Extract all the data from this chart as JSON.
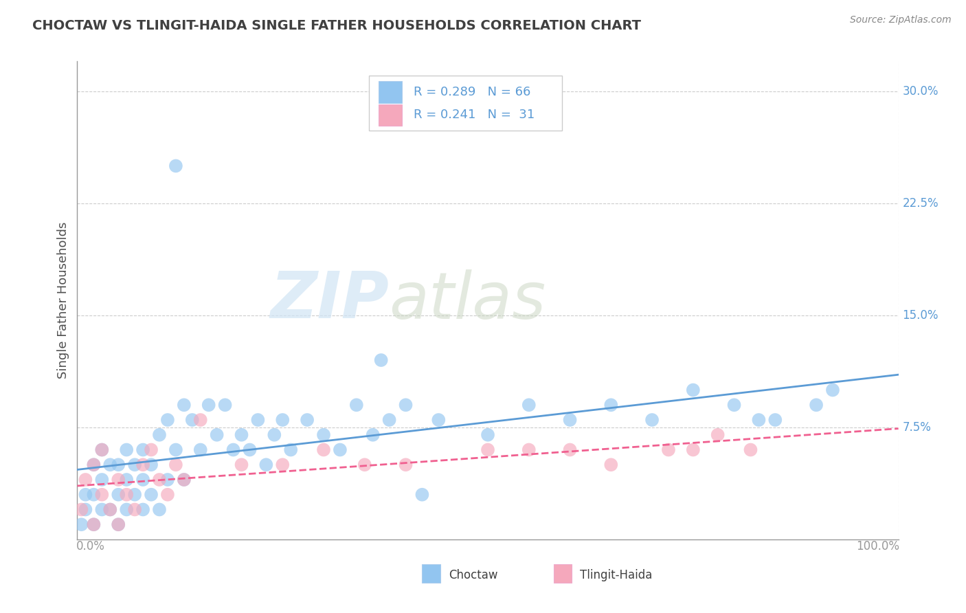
{
  "title": "CHOCTAW VS TLINGIT-HAIDA SINGLE FATHER HOUSEHOLDS CORRELATION CHART",
  "source": "Source: ZipAtlas.com",
  "ylabel": "Single Father Households",
  "choctaw_color": "#92c5f0",
  "tlingit_color": "#f5a8bc",
  "choctaw_line_color": "#5b9bd5",
  "tlingit_line_color": "#f06090",
  "choctaw_R": 0.289,
  "choctaw_N": 66,
  "tlingit_R": 0.241,
  "tlingit_N": 31,
  "watermark_zip": "ZIP",
  "watermark_atlas": "atlas",
  "xlim": [
    0.0,
    1.0
  ],
  "ylim": [
    0.0,
    0.32
  ],
  "background_color": "#ffffff",
  "grid_color": "#cccccc",
  "title_color": "#404040",
  "axis_color": "#999999",
  "choctaw_x": [
    0.005,
    0.01,
    0.01,
    0.02,
    0.02,
    0.02,
    0.03,
    0.03,
    0.03,
    0.04,
    0.04,
    0.05,
    0.05,
    0.05,
    0.06,
    0.06,
    0.06,
    0.07,
    0.07,
    0.08,
    0.08,
    0.08,
    0.09,
    0.09,
    0.1,
    0.1,
    0.11,
    0.11,
    0.12,
    0.13,
    0.13,
    0.14,
    0.15,
    0.16,
    0.17,
    0.18,
    0.19,
    0.2,
    0.21,
    0.22,
    0.23,
    0.24,
    0.25,
    0.26,
    0.28,
    0.3,
    0.32,
    0.34,
    0.36,
    0.38,
    0.4,
    0.42,
    0.44,
    0.5,
    0.55,
    0.6,
    0.65,
    0.7,
    0.75,
    0.8,
    0.83,
    0.85,
    0.9,
    0.92,
    0.37,
    0.12
  ],
  "choctaw_y": [
    0.01,
    0.02,
    0.03,
    0.01,
    0.03,
    0.05,
    0.02,
    0.04,
    0.06,
    0.02,
    0.05,
    0.01,
    0.03,
    0.05,
    0.02,
    0.04,
    0.06,
    0.03,
    0.05,
    0.02,
    0.04,
    0.06,
    0.03,
    0.05,
    0.02,
    0.07,
    0.04,
    0.08,
    0.06,
    0.04,
    0.09,
    0.08,
    0.06,
    0.09,
    0.07,
    0.09,
    0.06,
    0.07,
    0.06,
    0.08,
    0.05,
    0.07,
    0.08,
    0.06,
    0.08,
    0.07,
    0.06,
    0.09,
    0.07,
    0.08,
    0.09,
    0.03,
    0.08,
    0.07,
    0.09,
    0.08,
    0.09,
    0.08,
    0.1,
    0.09,
    0.08,
    0.08,
    0.09,
    0.1,
    0.12,
    0.25
  ],
  "tlingit_x": [
    0.005,
    0.01,
    0.02,
    0.02,
    0.03,
    0.03,
    0.04,
    0.05,
    0.05,
    0.06,
    0.07,
    0.08,
    0.09,
    0.1,
    0.11,
    0.12,
    0.13,
    0.15,
    0.2,
    0.25,
    0.3,
    0.35,
    0.4,
    0.5,
    0.55,
    0.6,
    0.65,
    0.72,
    0.75,
    0.78,
    0.82
  ],
  "tlingit_y": [
    0.02,
    0.04,
    0.01,
    0.05,
    0.03,
    0.06,
    0.02,
    0.01,
    0.04,
    0.03,
    0.02,
    0.05,
    0.06,
    0.04,
    0.03,
    0.05,
    0.04,
    0.08,
    0.05,
    0.05,
    0.06,
    0.05,
    0.05,
    0.06,
    0.06,
    0.06,
    0.05,
    0.06,
    0.06,
    0.07,
    0.06
  ]
}
